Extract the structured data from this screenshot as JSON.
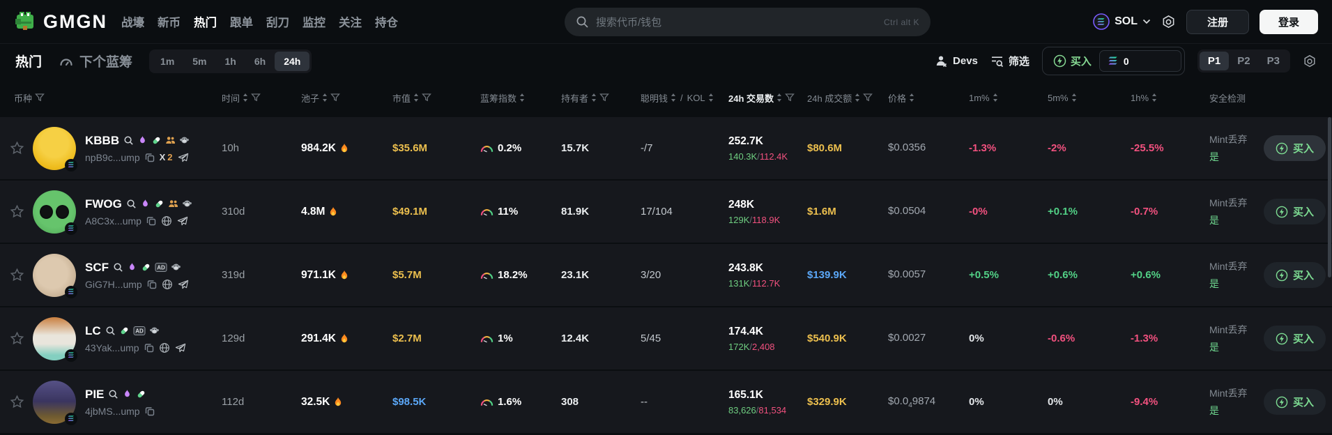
{
  "nav": {
    "logo_text": "GMGN",
    "items": [
      {
        "label": "战壕"
      },
      {
        "label": "新币"
      },
      {
        "label": "热门",
        "active": true
      },
      {
        "label": "跟单"
      },
      {
        "label": "刮刀"
      },
      {
        "label": "监控"
      },
      {
        "label": "关注"
      },
      {
        "label": "持仓"
      }
    ],
    "search": {
      "placeholder": "搜索代币/钱包",
      "shortcut": "Ctrl alt K"
    },
    "chain": "SOL",
    "register_label": "注册",
    "login_label": "登录"
  },
  "toolbar": {
    "hot_tab": "热门",
    "next_bluechip_tab": "下个蓝筹",
    "timeframes": [
      "1m",
      "5m",
      "1h",
      "6h",
      "24h"
    ],
    "active_timeframe": "24h",
    "devs_label": "Devs",
    "filter_label": "筛选",
    "buy_label": "买入",
    "buy_amount": "0",
    "presets": [
      "P1",
      "P2",
      "P3"
    ],
    "active_preset": "P1"
  },
  "colors": {
    "up_green": "#52d186",
    "down_pink": "#f2517f",
    "gold": "#ecbf4e",
    "blue": "#5ba7f7",
    "buy_green": "#7ddb92"
  },
  "table": {
    "buy_label": "买入",
    "headers": [
      {
        "label": "币种",
        "funnel": true
      },
      {
        "label": "时间",
        "sort": true,
        "funnel": true
      },
      {
        "label": "池子",
        "sort": true,
        "funnel": true
      },
      {
        "label": "市值",
        "sort": true,
        "funnel": true
      },
      {
        "label": "蓝筹指数",
        "sort": true
      },
      {
        "label": "聪明钱",
        "label2": "KOL",
        "sort": true,
        "is_kol": true
      },
      {
        "label": "24h 交易数",
        "sort": true,
        "funnel": true,
        "active": true
      },
      {
        "label": "24h 成交额",
        "sort": true,
        "funnel": true
      },
      {
        "label": "价格",
        "sort": true
      },
      {
        "label": "1m%",
        "sort": true
      },
      {
        "label": "5m%",
        "sort": true
      },
      {
        "label": "1h%",
        "sort": true
      },
      {
        "label": "安全检测"
      }
    ],
    "holders_header": {
      "label": "持有者",
      "sort": true,
      "funnel": true
    },
    "rows": [
      {
        "name": "KBBB",
        "address": "npB9c...ump",
        "avatar": "kbbb",
        "badges": [
          "search",
          "pump",
          "pill",
          "people",
          "monkey"
        ],
        "links": [
          {
            "type": "copy"
          },
          {
            "type": "x",
            "count": "2"
          },
          {
            "type": "tg"
          }
        ],
        "time": "10h",
        "pool": "984.2K",
        "mcap": "$35.6M",
        "mcap_color": "gold",
        "bluechip": "0.2%",
        "holders": "15.7K",
        "smart": "-/7",
        "txns": "252.7K",
        "buys": "140.3K",
        "sells": "112.4K",
        "volume": "$80.6M",
        "volume_color": "gold",
        "price_prefix": "$0.0356",
        "price_sub": "",
        "price_rest": "",
        "chg_1m": "-1.3%",
        "chg_5m": "-2%",
        "chg_1h": "-25.5%",
        "security_label": "Mint丢弃",
        "security_value": "是",
        "buy_highlight": true
      },
      {
        "name": "FWOG",
        "address": "A8C3x...ump",
        "avatar": "fwog",
        "badges": [
          "search",
          "pump",
          "pill",
          "people",
          "monkey"
        ],
        "links": [
          {
            "type": "copy"
          },
          {
            "type": "globe"
          },
          {
            "type": "tg"
          }
        ],
        "time": "310d",
        "pool": "4.8M",
        "mcap": "$49.1M",
        "mcap_color": "gold",
        "bluechip": "11%",
        "holders": "81.9K",
        "smart": "17/104",
        "txns": "248K",
        "buys": "129K",
        "sells": "118.9K",
        "volume": "$1.6M",
        "volume_color": "gold",
        "price_prefix": "$0.0504",
        "price_sub": "",
        "price_rest": "",
        "chg_1m": "-0%",
        "chg_5m": "+0.1%",
        "chg_1h": "-0.7%",
        "security_label": "Mint丢弃",
        "security_value": "是",
        "buy_highlight": false
      },
      {
        "name": "SCF",
        "address": "GiG7H...ump",
        "avatar": "scf",
        "badges": [
          "search",
          "pump",
          "pill",
          "ad",
          "monkey"
        ],
        "links": [
          {
            "type": "copy"
          },
          {
            "type": "globe"
          },
          {
            "type": "tg"
          }
        ],
        "time": "319d",
        "pool": "971.1K",
        "mcap": "$5.7M",
        "mcap_color": "gold",
        "bluechip": "18.2%",
        "holders": "23.1K",
        "smart": "3/20",
        "txns": "243.8K",
        "buys": "131K",
        "sells": "112.7K",
        "volume": "$139.9K",
        "volume_color": "blue",
        "price_prefix": "$0.0057",
        "price_sub": "",
        "price_rest": "",
        "chg_1m": "+0.5%",
        "chg_5m": "+0.6%",
        "chg_1h": "+0.6%",
        "security_label": "Mint丢弃",
        "security_value": "是",
        "buy_highlight": false
      },
      {
        "name": "LC",
        "address": "43Yak...ump",
        "avatar": "lc",
        "badges": [
          "search",
          "pill",
          "ad",
          "monkey"
        ],
        "links": [
          {
            "type": "copy"
          },
          {
            "type": "globe"
          },
          {
            "type": "tg"
          }
        ],
        "time": "129d",
        "pool": "291.4K",
        "mcap": "$2.7M",
        "mcap_color": "gold",
        "bluechip": "1%",
        "holders": "12.4K",
        "smart": "5/45",
        "txns": "174.4K",
        "buys": "172K",
        "sells": "2,408",
        "volume": "$540.9K",
        "volume_color": "gold",
        "price_prefix": "$0.0027",
        "price_sub": "",
        "price_rest": "",
        "chg_1m": "0%",
        "chg_5m": "-0.6%",
        "chg_1h": "-1.3%",
        "security_label": "Mint丢弃",
        "security_value": "是",
        "buy_highlight": false
      },
      {
        "name": "PIE",
        "address": "4jbMS...ump",
        "avatar": "pie",
        "badges": [
          "search",
          "pump",
          "pill"
        ],
        "links": [
          {
            "type": "copy"
          }
        ],
        "time": "112d",
        "pool": "32.5K",
        "mcap": "$98.5K",
        "mcap_color": "blue",
        "bluechip": "1.6%",
        "holders": "308",
        "smart": "--",
        "txns": "165.1K",
        "buys": "83,626",
        "sells": "81,534",
        "volume": "$329.9K",
        "volume_color": "gold",
        "price_prefix": "$0.0",
        "price_sub": "4",
        "price_rest": "9874",
        "chg_1m": "0%",
        "chg_5m": "0%",
        "chg_1h": "-9.4%",
        "security_label": "Mint丢弃",
        "security_value": "是",
        "buy_highlight": false
      }
    ]
  }
}
